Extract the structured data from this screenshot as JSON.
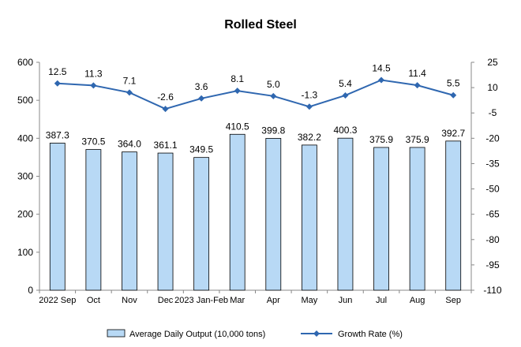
{
  "chart_data": {
    "type": "bar",
    "title": "Rolled Steel",
    "categories": [
      "2022 Sep",
      "Oct",
      "Nov",
      "Dec",
      "2023 Jan-Feb",
      "Mar",
      "Apr",
      "May",
      "Jun",
      "Jul",
      "Aug",
      "Sep"
    ],
    "series": [
      {
        "name": "Average Daily Output (10,000 tons)",
        "type": "bar",
        "axis": "left",
        "color": "#b8d9f5",
        "values": [
          387.3,
          370.5,
          364.0,
          361.1,
          349.5,
          410.5,
          399.8,
          382.2,
          400.3,
          375.9,
          375.9,
          392.7
        ],
        "labels": [
          "387.3",
          "370.5",
          "364.0",
          "361.1",
          "349.5",
          "410.5",
          "399.8",
          "382.2",
          "400.3",
          "375.9",
          "375.9",
          "392.7"
        ]
      },
      {
        "name": "Growth Rate (%)",
        "type": "line",
        "axis": "right",
        "color": "#2f67b0",
        "values": [
          12.5,
          11.3,
          7.1,
          -2.6,
          3.6,
          8.1,
          5.0,
          -1.3,
          5.4,
          14.5,
          11.4,
          5.5
        ],
        "labels": [
          "12.5",
          "11.3",
          "7.1",
          "-2.6",
          "3.6",
          "8.1",
          "5.0",
          "-1.3",
          "5.4",
          "14.5",
          "11.4",
          "5.5"
        ]
      }
    ],
    "y_left": {
      "range": [
        0,
        600
      ],
      "ticks": [
        "0",
        "100",
        "200",
        "300",
        "400",
        "500",
        "600"
      ]
    },
    "y_right": {
      "range": [
        -110,
        25
      ],
      "ticks": [
        "25",
        "10",
        "-5",
        "-20",
        "-35",
        "-50",
        "-65",
        "-80",
        "-95",
        "-110"
      ]
    },
    "legend_position": "bottom",
    "grid": false
  }
}
